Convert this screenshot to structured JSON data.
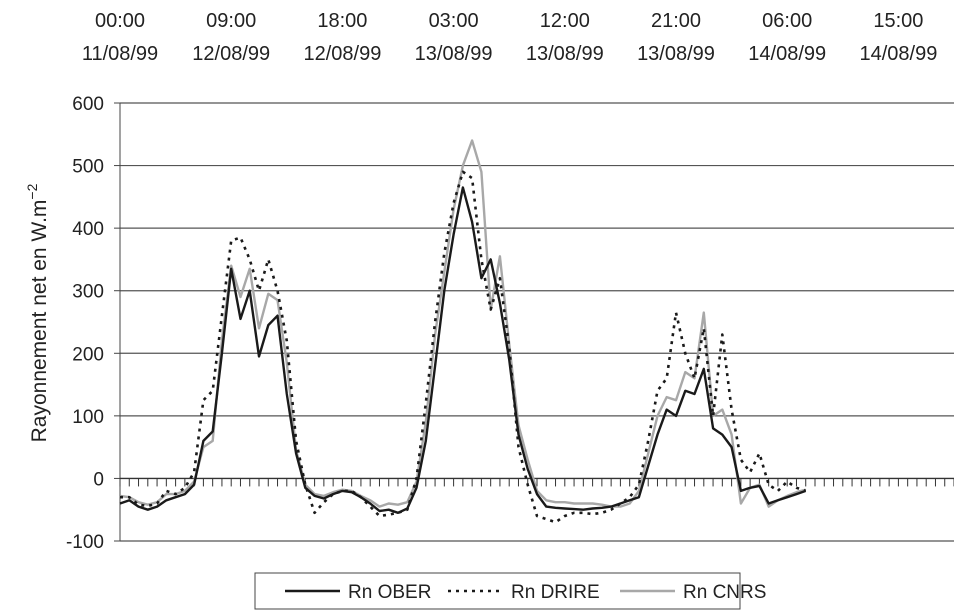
{
  "chart_data": {
    "type": "line",
    "ylabel": "Rayonnement net en W.m",
    "ylabel_sup": "−2",
    "ylim": [
      -100,
      600
    ],
    "yticks": [
      -100,
      0,
      100,
      200,
      300,
      400,
      500,
      600
    ],
    "grid": true,
    "legend_position": "bottom-center",
    "x_range": [
      0,
      90
    ],
    "x_tick_labels": [
      {
        "x": 0,
        "time": "00:00",
        "date": "11/08/99"
      },
      {
        "x": 12,
        "time": "09:00",
        "date": "12/08/99"
      },
      {
        "x": 24,
        "time": "18:00",
        "date": "12/08/99"
      },
      {
        "x": 36,
        "time": "03:00",
        "date": "13/08/99"
      },
      {
        "x": 48,
        "time": "12:00",
        "date": "13/08/99"
      },
      {
        "x": 60,
        "time": "21:00",
        "date": "13/08/99"
      },
      {
        "x": 72,
        "time": "06:00",
        "date": "14/08/99"
      },
      {
        "x": 84,
        "time": "15:00",
        "date": "14/08/99"
      }
    ],
    "series": [
      {
        "name": "Rn OBER",
        "color": "#1a1a1a",
        "style": "solid",
        "values": [
          [
            0,
            -40
          ],
          [
            1,
            -35
          ],
          [
            2,
            -45
          ],
          [
            3,
            -50
          ],
          [
            4,
            -45
          ],
          [
            5,
            -35
          ],
          [
            6,
            -30
          ],
          [
            7,
            -25
          ],
          [
            8,
            -10
          ],
          [
            9,
            60
          ],
          [
            10,
            75
          ],
          [
            11,
            200
          ],
          [
            12,
            335
          ],
          [
            13,
            255
          ],
          [
            14,
            300
          ],
          [
            15,
            195
          ],
          [
            16,
            245
          ],
          [
            17,
            260
          ],
          [
            18,
            135
          ],
          [
            19,
            40
          ],
          [
            20,
            -15
          ],
          [
            21,
            -28
          ],
          [
            22,
            -32
          ],
          [
            23,
            -25
          ],
          [
            24,
            -20
          ],
          [
            25,
            -22
          ],
          [
            26,
            -30
          ],
          [
            27,
            -40
          ],
          [
            28,
            -52
          ],
          [
            29,
            -50
          ],
          [
            30,
            -55
          ],
          [
            31,
            -48
          ],
          [
            32,
            -15
          ],
          [
            33,
            60
          ],
          [
            34,
            180
          ],
          [
            35,
            300
          ],
          [
            36,
            390
          ],
          [
            37,
            465
          ],
          [
            38,
            410
          ],
          [
            39,
            320
          ],
          [
            40,
            350
          ],
          [
            41,
            280
          ],
          [
            42,
            190
          ],
          [
            43,
            70
          ],
          [
            44,
            15
          ],
          [
            45,
            -25
          ],
          [
            46,
            -45
          ],
          [
            47,
            -47
          ],
          [
            48,
            -48
          ],
          [
            49,
            -49
          ],
          [
            50,
            -50
          ],
          [
            51,
            -48
          ],
          [
            52,
            -47
          ],
          [
            53,
            -45
          ],
          [
            54,
            -40
          ],
          [
            55,
            -35
          ],
          [
            56,
            -30
          ],
          [
            57,
            20
          ],
          [
            58,
            70
          ],
          [
            59,
            110
          ],
          [
            60,
            100
          ],
          [
            61,
            140
          ],
          [
            62,
            135
          ],
          [
            63,
            175
          ],
          [
            64,
            80
          ],
          [
            65,
            70
          ],
          [
            66,
            50
          ],
          [
            67,
            -20
          ],
          [
            68,
            -15
          ],
          [
            69,
            -12
          ],
          [
            70,
            -40
          ],
          [
            71,
            -35
          ],
          [
            72,
            -30
          ],
          [
            73,
            -25
          ],
          [
            74,
            -20
          ]
        ]
      },
      {
        "name": "Rn DRIRE",
        "color": "#1a1a1a",
        "style": "dotted",
        "values": [
          [
            0,
            -30
          ],
          [
            1,
            -30
          ],
          [
            2,
            -42
          ],
          [
            3,
            -44
          ],
          [
            4,
            -40
          ],
          [
            5,
            -20
          ],
          [
            6,
            -25
          ],
          [
            7,
            -15
          ],
          [
            8,
            10
          ],
          [
            9,
            125
          ],
          [
            10,
            140
          ],
          [
            11,
            260
          ],
          [
            12,
            380
          ],
          [
            13,
            385
          ],
          [
            14,
            350
          ],
          [
            15,
            300
          ],
          [
            16,
            350
          ],
          [
            17,
            300
          ],
          [
            18,
            220
          ],
          [
            19,
            60
          ],
          [
            20,
            -10
          ],
          [
            21,
            -55
          ],
          [
            22,
            -38
          ],
          [
            23,
            -25
          ],
          [
            24,
            -20
          ],
          [
            25,
            -20
          ],
          [
            26,
            -30
          ],
          [
            27,
            -45
          ],
          [
            28,
            -60
          ],
          [
            29,
            -58
          ],
          [
            30,
            -55
          ],
          [
            31,
            -50
          ],
          [
            32,
            0
          ],
          [
            33,
            120
          ],
          [
            34,
            250
          ],
          [
            35,
            360
          ],
          [
            36,
            440
          ],
          [
            37,
            490
          ],
          [
            38,
            480
          ],
          [
            39,
            350
          ],
          [
            40,
            270
          ],
          [
            41,
            320
          ],
          [
            42,
            210
          ],
          [
            43,
            50
          ],
          [
            44,
            -10
          ],
          [
            45,
            -60
          ],
          [
            46,
            -65
          ],
          [
            47,
            -70
          ],
          [
            48,
            -60
          ],
          [
            49,
            -55
          ],
          [
            50,
            -55
          ],
          [
            51,
            -57
          ],
          [
            52,
            -55
          ],
          [
            53,
            -50
          ],
          [
            54,
            -40
          ],
          [
            55,
            -30
          ],
          [
            56,
            -10
          ],
          [
            57,
            60
          ],
          [
            58,
            140
          ],
          [
            59,
            160
          ],
          [
            60,
            265
          ],
          [
            61,
            200
          ],
          [
            62,
            160
          ],
          [
            63,
            240
          ],
          [
            64,
            100
          ],
          [
            65,
            230
          ],
          [
            66,
            110
          ],
          [
            67,
            30
          ],
          [
            68,
            10
          ],
          [
            69,
            40
          ],
          [
            70,
            -10
          ],
          [
            71,
            -20
          ],
          [
            72,
            -5
          ],
          [
            73,
            -15
          ],
          [
            74,
            -20
          ]
        ]
      },
      {
        "name": "Rn CNRS",
        "color": "#a8a8a8",
        "style": "solid",
        "values": [
          [
            0,
            -28
          ],
          [
            1,
            -30
          ],
          [
            2,
            -38
          ],
          [
            3,
            -42
          ],
          [
            4,
            -38
          ],
          [
            5,
            -25
          ],
          [
            6,
            -25
          ],
          [
            7,
            -20
          ],
          [
            8,
            -5
          ],
          [
            9,
            50
          ],
          [
            10,
            60
          ],
          [
            11,
            220
          ],
          [
            12,
            340
          ],
          [
            13,
            290
          ],
          [
            14,
            335
          ],
          [
            15,
            240
          ],
          [
            16,
            295
          ],
          [
            17,
            285
          ],
          [
            18,
            185
          ],
          [
            19,
            45
          ],
          [
            20,
            -10
          ],
          [
            21,
            -25
          ],
          [
            22,
            -28
          ],
          [
            23,
            -22
          ],
          [
            24,
            -18
          ],
          [
            25,
            -20
          ],
          [
            26,
            -28
          ],
          [
            27,
            -35
          ],
          [
            28,
            -45
          ],
          [
            29,
            -40
          ],
          [
            30,
            -42
          ],
          [
            31,
            -38
          ],
          [
            32,
            -5
          ],
          [
            33,
            90
          ],
          [
            34,
            230
          ],
          [
            35,
            330
          ],
          [
            36,
            430
          ],
          [
            37,
            500
          ],
          [
            38,
            540
          ],
          [
            39,
            490
          ],
          [
            40,
            270
          ],
          [
            41,
            355
          ],
          [
            42,
            215
          ],
          [
            43,
            85
          ],
          [
            44,
            30
          ],
          [
            45,
            -20
          ],
          [
            46,
            -35
          ],
          [
            47,
            -38
          ],
          [
            48,
            -38
          ],
          [
            49,
            -40
          ],
          [
            50,
            -40
          ],
          [
            51,
            -40
          ],
          [
            52,
            -42
          ],
          [
            53,
            -45
          ],
          [
            54,
            -45
          ],
          [
            55,
            -40
          ],
          [
            56,
            -20
          ],
          [
            57,
            40
          ],
          [
            58,
            100
          ],
          [
            59,
            130
          ],
          [
            60,
            125
          ],
          [
            61,
            170
          ],
          [
            62,
            160
          ],
          [
            63,
            265
          ],
          [
            64,
            100
          ],
          [
            65,
            110
          ],
          [
            66,
            70
          ],
          [
            67,
            -40
          ],
          [
            68,
            -15
          ],
          [
            69,
            -10
          ],
          [
            70,
            -45
          ],
          [
            71,
            -35
          ],
          [
            72,
            -28
          ],
          [
            73,
            -22
          ],
          [
            74,
            -18
          ]
        ]
      }
    ]
  }
}
